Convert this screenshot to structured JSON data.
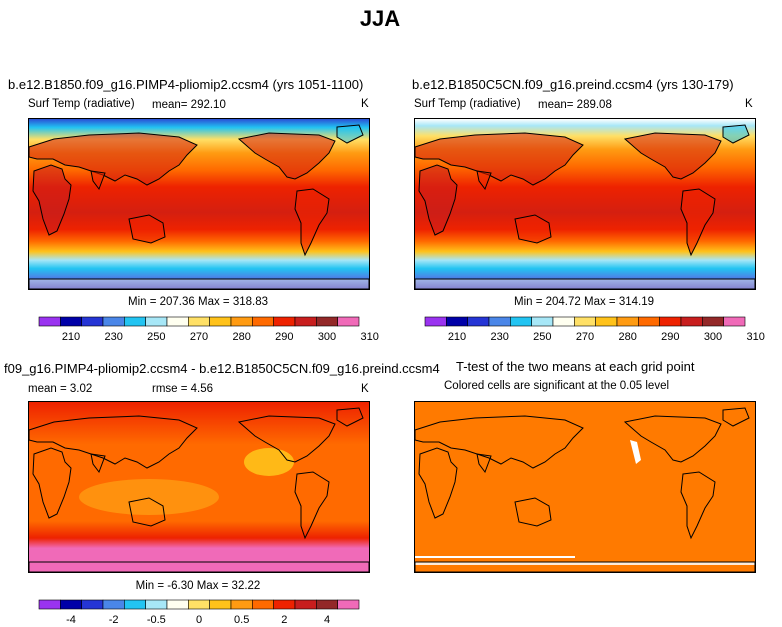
{
  "title": "JJA",
  "panels": [
    {
      "case": "b.e12.B1850.f09_g16.PIMP4-pliomip2.ccsm4 (yrs 1051-1100)",
      "variable": "Surf Temp (radiative)",
      "mean_text": "mean= 292.10",
      "units": "K",
      "stats": "Min = 207.36 Max = 318.83"
    },
    {
      "case": "b.e12.B1850C5CN.f09_g16.preind.ccsm4 (yrs 130-179)",
      "variable": "Surf Temp (radiative)",
      "mean_text": "mean= 289.08",
      "units": "K",
      "stats": "Min = 204.72 Max = 314.19"
    },
    {
      "case": "f09_g16.PIMP4-pliomip2.ccsm4 - b.e12.B1850C5CN.f09_g16.preind.ccsm4",
      "mean_text": "mean =   3.02",
      "rmse_text": "rmse =   4.56",
      "units": "K",
      "stats": "Min =  -6.30 Max =  32.22"
    },
    {
      "case": "T-test of the two means at each grid point",
      "subtitle": "Colored cells are significant at the 0.05 level"
    }
  ],
  "chart_data": [
    {
      "type": "heatmap",
      "colorbar": {
        "levels": [
          210,
          230,
          250,
          270,
          280,
          290,
          300,
          310
        ],
        "labels": [
          "210",
          "230",
          "250",
          "270",
          "280",
          "290",
          "300",
          "310"
        ],
        "colors": [
          "#9a33f0",
          "#0000a8",
          "#2535d5",
          "#4a86e8",
          "#22c4f2",
          "#a7e7f7",
          "#fffff0",
          "#ffe066",
          "#ffc21a",
          "#ff9b12",
          "#ff6a00",
          "#ee2200",
          "#c81e1e",
          "#932828",
          "#f06ab8"
        ]
      }
    },
    {
      "type": "heatmap",
      "colorbar": {
        "levels": [
          210,
          230,
          250,
          270,
          280,
          290,
          300,
          310
        ],
        "labels": [
          "210",
          "230",
          "250",
          "270",
          "280",
          "290",
          "300",
          "310"
        ],
        "colors": [
          "#9a33f0",
          "#0000a8",
          "#2535d5",
          "#4a86e8",
          "#22c4f2",
          "#a7e7f7",
          "#fffff0",
          "#ffe066",
          "#ffc21a",
          "#ff9b12",
          "#ff6a00",
          "#ee2200",
          "#c81e1e",
          "#932828",
          "#f06ab8"
        ]
      }
    },
    {
      "type": "heatmap",
      "colorbar": {
        "levels": [
          -4,
          -2,
          -0.5,
          0,
          0.5,
          2,
          4
        ],
        "labels": [
          "-4",
          "-2",
          "-0.5",
          "0",
          "0.5",
          "2",
          "4"
        ],
        "colors": [
          "#9a33f0",
          "#0000a8",
          "#2535d5",
          "#4a86e8",
          "#22c4f2",
          "#a7e7f7",
          "#fffff0",
          "#ffe066",
          "#ffc21a",
          "#ff9b12",
          "#ff6a00",
          "#ee2200",
          "#c81e1e",
          "#932828",
          "#f06ab8"
        ]
      }
    },
    {
      "type": "heatmap",
      "significance_color": "#ff7a00"
    }
  ]
}
